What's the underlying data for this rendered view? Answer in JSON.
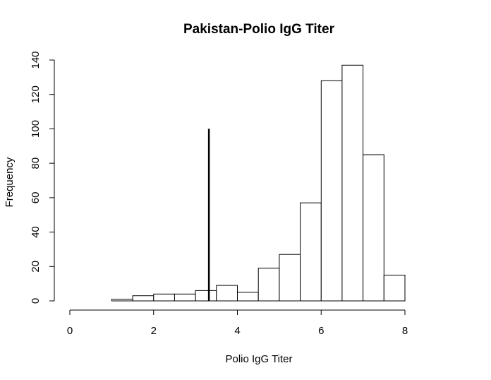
{
  "chart_data": {
    "type": "bar",
    "title": "Pakistan-Polio IgG Titer",
    "xlabel": "Polio IgG Titer",
    "ylabel": "Frequency",
    "xlim": [
      0,
      8
    ],
    "ylim": [
      0,
      140
    ],
    "x_ticks": [
      0,
      2,
      4,
      6,
      8
    ],
    "y_ticks": [
      0,
      20,
      40,
      60,
      80,
      100,
      120,
      140
    ],
    "bin_width": 0.5,
    "bins": [
      {
        "start": 1.0,
        "end": 1.5,
        "count": 1
      },
      {
        "start": 1.5,
        "end": 2.0,
        "count": 3
      },
      {
        "start": 2.0,
        "end": 2.5,
        "count": 4
      },
      {
        "start": 2.5,
        "end": 3.0,
        "count": 4
      },
      {
        "start": 3.0,
        "end": 3.5,
        "count": 6
      },
      {
        "start": 3.5,
        "end": 4.0,
        "count": 9
      },
      {
        "start": 4.0,
        "end": 4.5,
        "count": 5
      },
      {
        "start": 4.5,
        "end": 5.0,
        "count": 19
      },
      {
        "start": 5.0,
        "end": 5.5,
        "count": 27
      },
      {
        "start": 5.5,
        "end": 6.0,
        "count": 57
      },
      {
        "start": 6.0,
        "end": 6.5,
        "count": 128
      },
      {
        "start": 6.5,
        "end": 7.0,
        "count": 137
      },
      {
        "start": 7.0,
        "end": 7.5,
        "count": 85
      },
      {
        "start": 7.5,
        "end": 8.0,
        "count": 15
      }
    ],
    "reference_line": {
      "x": 3.32,
      "y_from": 0,
      "y_to": 100
    },
    "grid": false,
    "legend": "none",
    "colors": {
      "bar_fill": "#ffffff",
      "bar_stroke": "#000000",
      "line": "#000000"
    }
  }
}
